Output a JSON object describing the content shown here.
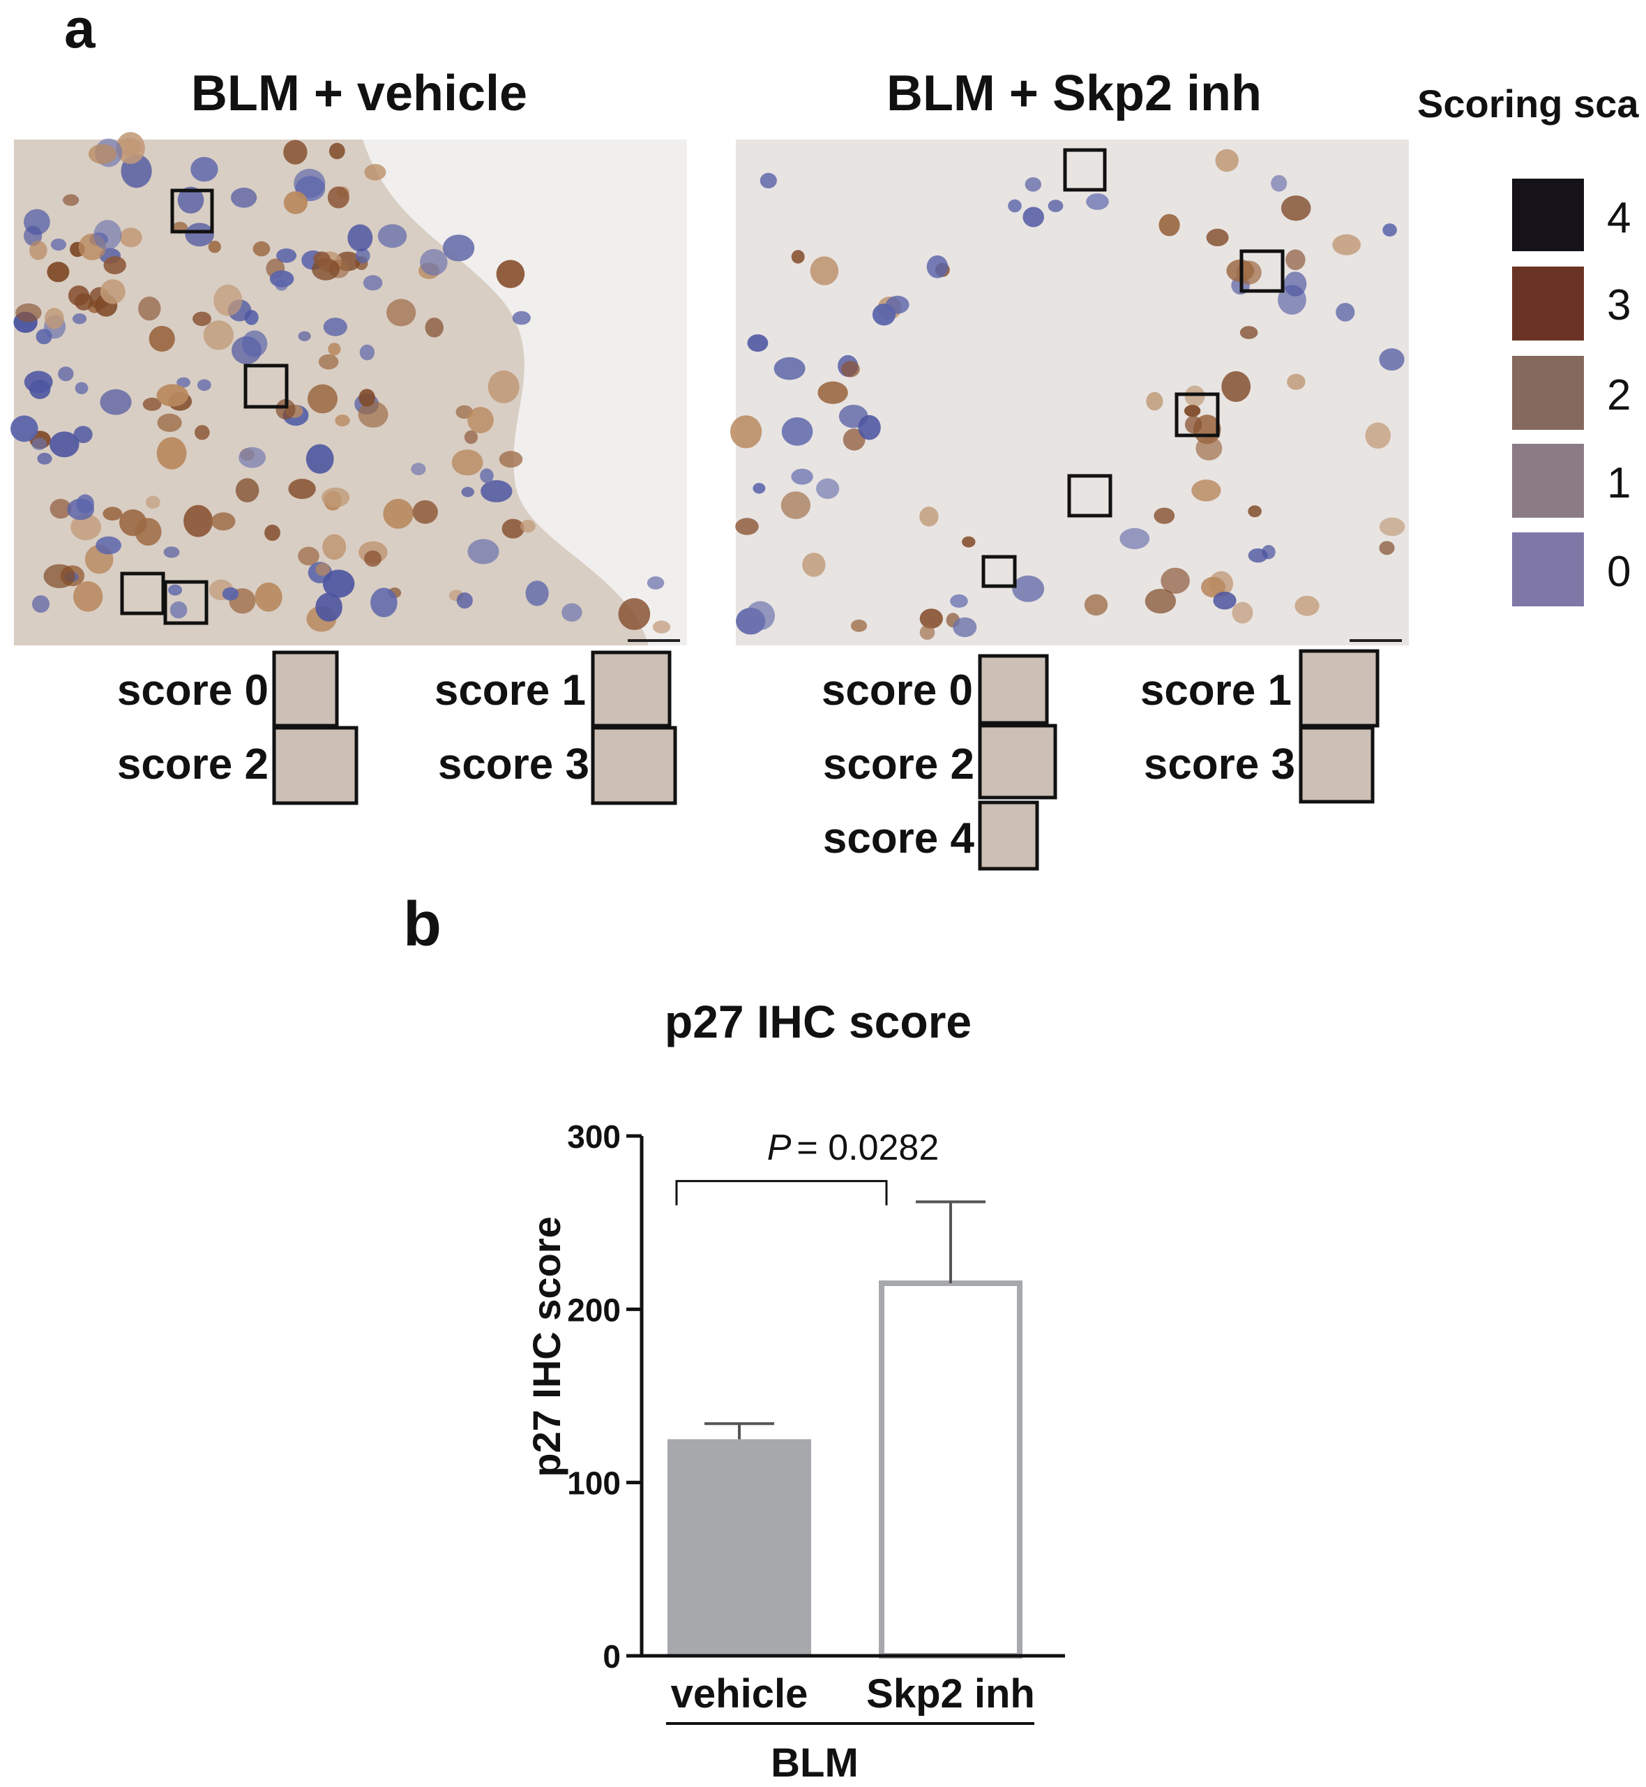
{
  "panel_a": {
    "label": "a",
    "micrographs": [
      {
        "title": "BLM + vehicle",
        "insets": [
          {
            "label": "score 0",
            "color": "#5f6fa6"
          },
          {
            "label": "score 1",
            "color": "#9b90a8"
          },
          {
            "label": "score 2",
            "color": "#9b6e55"
          },
          {
            "label": "score 3",
            "color": "#8f4a20"
          }
        ]
      },
      {
        "title": "BLM + Skp2 inh",
        "insets": [
          {
            "label": "score 0",
            "color": "#7f76ad"
          },
          {
            "label": "score 1",
            "color": "#b59a84"
          },
          {
            "label": "score 2",
            "color": "#a47553"
          },
          {
            "label": "score 3",
            "color": "#8c4618"
          },
          {
            "label": "score 4",
            "color": "#6b2c12"
          }
        ]
      }
    ],
    "scoring_scale": {
      "title": "Scoring sca",
      "levels": [
        {
          "label": "4",
          "color": "#15121a"
        },
        {
          "label": "3",
          "color": "#6a3425"
        },
        {
          "label": "2",
          "color": "#86695d"
        },
        {
          "label": "1",
          "color": "#8a7b84"
        },
        {
          "label": "0",
          "color": "#7f78a6"
        }
      ]
    }
  },
  "panel_b": {
    "label": "b"
  },
  "chart_data": {
    "type": "bar",
    "title": "p27 IHC score",
    "ylabel": "p27 IHC score",
    "xlabel": "",
    "group_label": "BLM",
    "categories": [
      "vehicle",
      "Skp2 inh"
    ],
    "values": [
      125,
      215
    ],
    "errors": [
      9,
      47
    ],
    "ylim": [
      0,
      300
    ],
    "yticks": [
      "0",
      "100",
      "200",
      "300"
    ],
    "annotation": {
      "p_label": "P",
      "p_value": "= 0.0282"
    },
    "colors": [
      "#a6a8ab",
      "#ffffff"
    ],
    "edge_colors": [
      "#a6a8ab",
      "#a6a8ab"
    ],
    "grid": false,
    "legend": "none"
  }
}
